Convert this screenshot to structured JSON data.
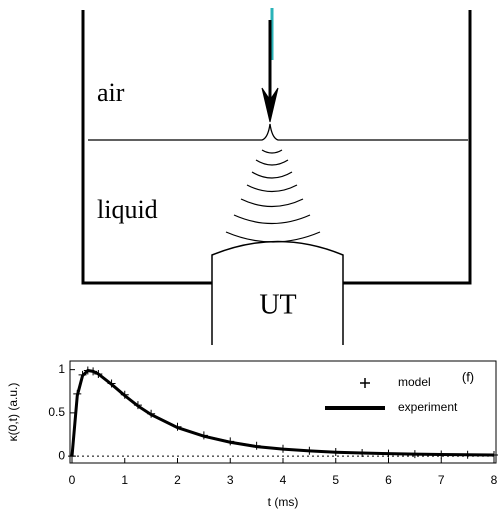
{
  "diagram": {
    "labels": {
      "top": "air",
      "middle": "liquid",
      "transducer": "UT"
    }
  },
  "chart_data": {
    "type": "line",
    "panel_label": "(f)",
    "x_label": "t (ms)",
    "y_label": "κ(0,t) (a.u.)",
    "x": [
      0,
      0.1,
      0.2,
      0.3,
      0.4,
      0.5,
      0.75,
      1,
      1.25,
      1.5,
      2,
      2.5,
      3,
      3.5,
      4,
      4.5,
      5,
      5.5,
      6,
      6.5,
      7,
      7.5,
      8
    ],
    "series": [
      {
        "name": "model",
        "color": "#000000",
        "marker": "plus",
        "values": [
          0,
          0.72,
          0.94,
          0.99,
          0.98,
          0.95,
          0.84,
          0.71,
          0.59,
          0.49,
          0.34,
          0.24,
          0.17,
          0.12,
          0.085,
          0.062,
          0.047,
          0.036,
          0.029,
          0.023,
          0.019,
          0.016,
          0.013
        ]
      },
      {
        "name": "experiment",
        "color": "#000000",
        "marker": "none",
        "values": [
          0,
          0.7,
          0.93,
          0.99,
          0.98,
          0.95,
          0.83,
          0.7,
          0.58,
          0.48,
          0.33,
          0.23,
          0.16,
          0.11,
          0.08,
          0.06,
          0.045,
          0.035,
          0.028,
          0.022,
          0.018,
          0.015,
          0.012
        ]
      }
    ],
    "xlim": [
      0,
      8
    ],
    "ylim": [
      -0.08,
      1.1
    ],
    "xticks": [
      0,
      1,
      2,
      3,
      4,
      5,
      6,
      7,
      8
    ],
    "yticks": [
      0,
      0.5,
      1
    ],
    "zero_line": true
  }
}
